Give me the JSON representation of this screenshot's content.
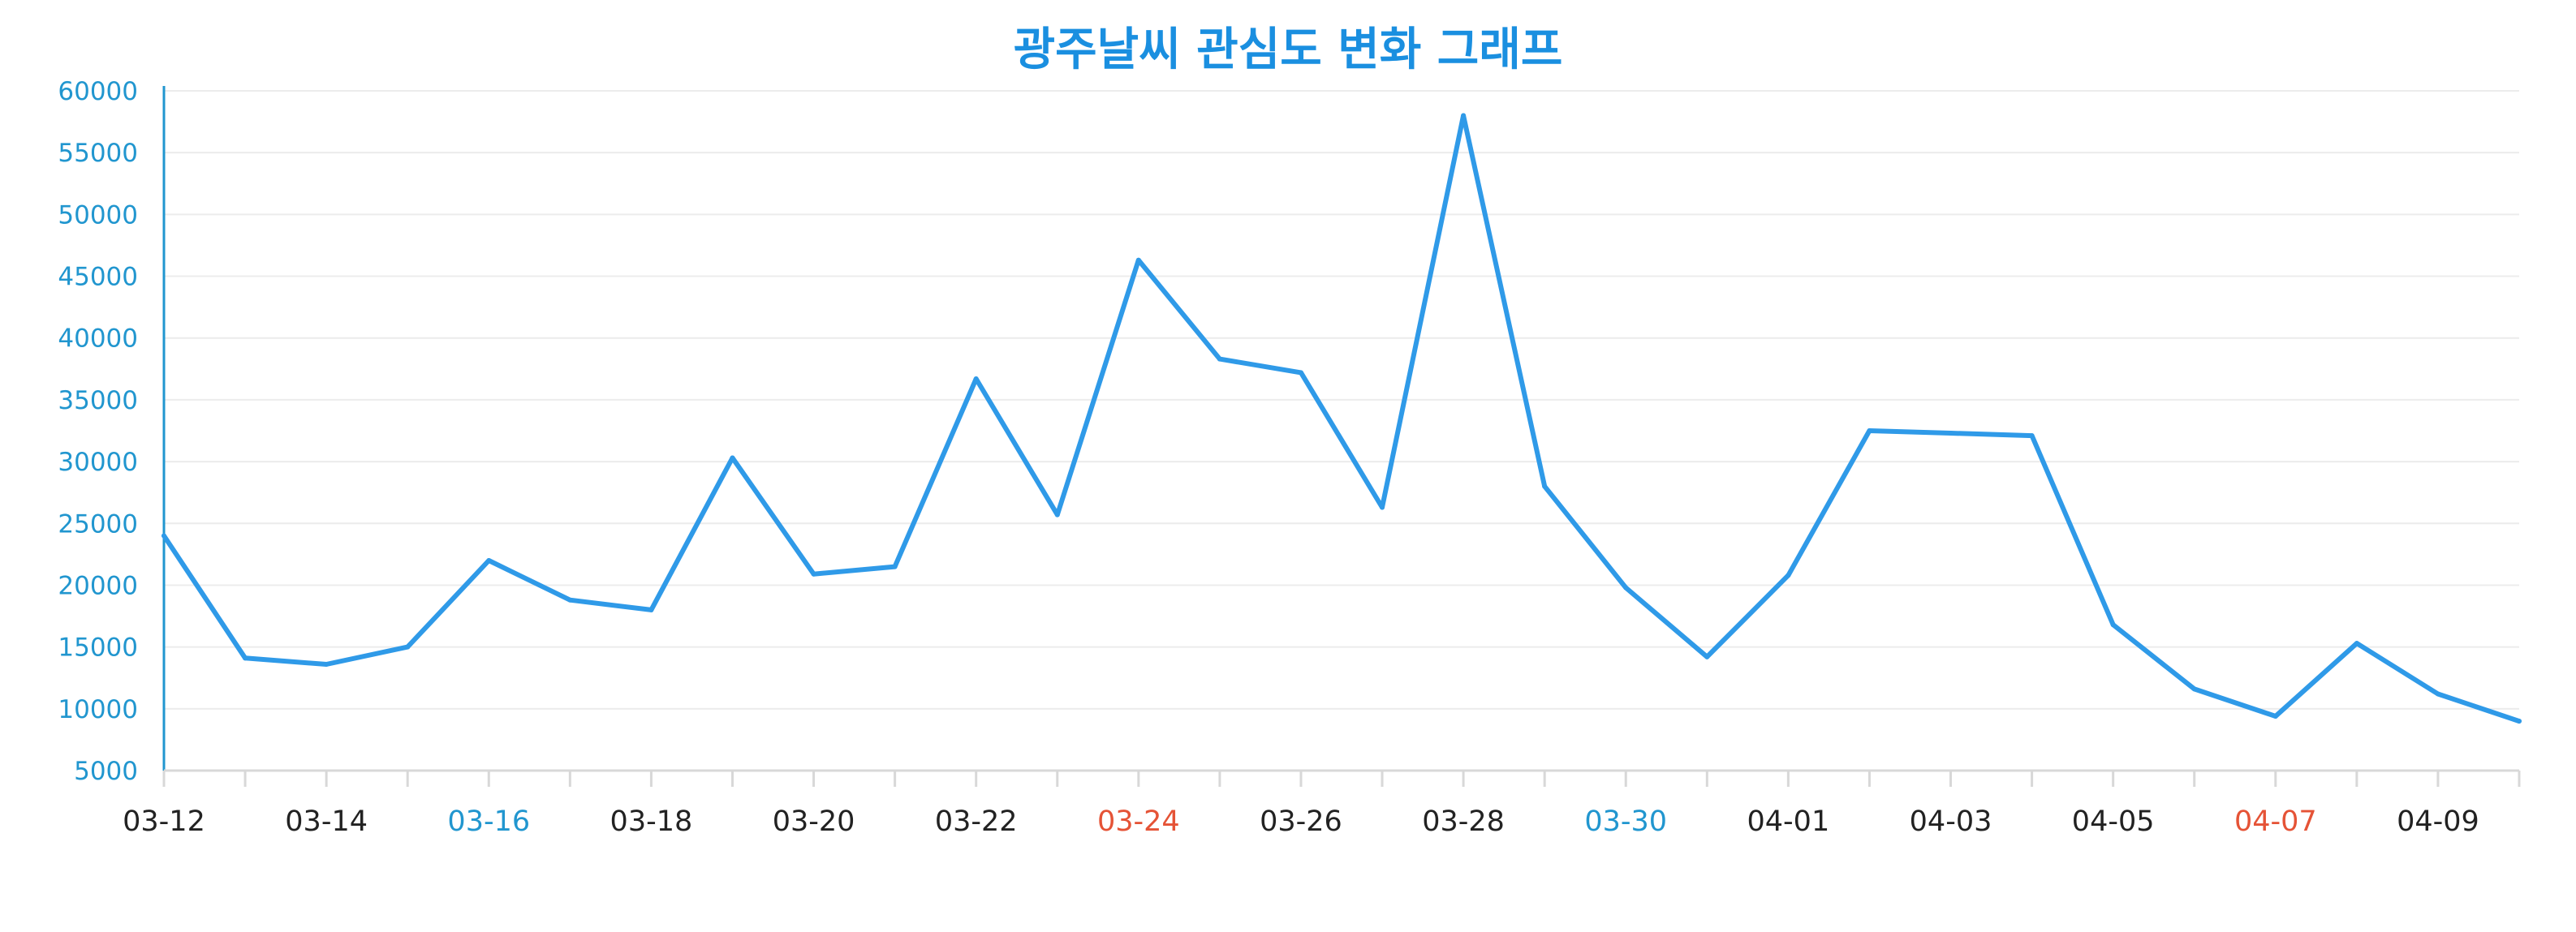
{
  "chart_data": {
    "type": "line",
    "title": "광주날씨 관심도 변화 그래프",
    "xlabel": "",
    "ylabel": "",
    "x": [
      "03-12",
      "03-13",
      "03-14",
      "03-15",
      "03-16",
      "03-17",
      "03-18",
      "03-19",
      "03-20",
      "03-21",
      "03-22",
      "03-23",
      "03-24",
      "03-25",
      "03-26",
      "03-27",
      "03-28",
      "03-29",
      "03-30",
      "03-31",
      "04-01",
      "04-02",
      "04-03",
      "04-04",
      "04-05",
      "04-06",
      "04-07",
      "04-08",
      "04-09",
      "04-10"
    ],
    "series": [
      {
        "values": [
          24000,
          14100,
          13600,
          15000,
          22000,
          18800,
          18000,
          30300,
          20900,
          21500,
          36700,
          25700,
          46300,
          38300,
          37200,
          26300,
          58000,
          28000,
          19800,
          14200,
          20800,
          32500,
          32300,
          32100,
          16800,
          11600,
          9400,
          15300,
          11200,
          9000
        ]
      }
    ],
    "x_tick_labels": [
      "03-12",
      "03-14",
      "03-16",
      "03-18",
      "03-20",
      "03-22",
      "03-24",
      "03-26",
      "03-28",
      "03-30",
      "04-01",
      "04-03",
      "04-05",
      "04-07",
      "04-09"
    ],
    "y_tick_labels": [
      "5000",
      "10000",
      "15000",
      "20000",
      "25000",
      "30000",
      "35000",
      "40000",
      "45000",
      "50000",
      "55000",
      "60000"
    ],
    "ylim": [
      5000,
      60000
    ],
    "grid": true,
    "legend": "none",
    "colors": {
      "line": "#2f9ae8",
      "title": "#1a8fe0",
      "y_tick": "#2196cf",
      "x_tick": "#222222",
      "x_tick_saturday": "#2196cf",
      "x_tick_sunday": "#e55336",
      "grid": "#ececec",
      "axis": "#d8d8d8"
    },
    "x_tick_highlight": {
      "03-16": "saturday",
      "03-24": "sunday",
      "03-30": "saturday",
      "04-07": "sunday"
    }
  }
}
